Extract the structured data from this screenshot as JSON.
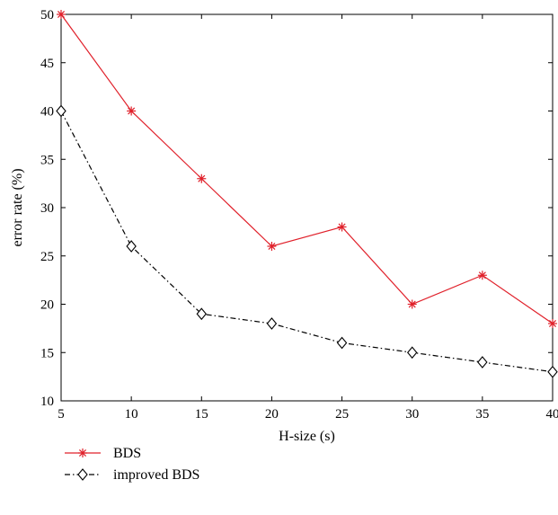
{
  "chart_data": {
    "type": "line",
    "title": "",
    "xlabel": "H-size (s)",
    "ylabel": "error rate (%)",
    "xlim": [
      5,
      40
    ],
    "ylim": [
      10,
      50
    ],
    "x": [
      5,
      10,
      15,
      20,
      25,
      30,
      35,
      40
    ],
    "x_ticks": [
      "5",
      "10",
      "15",
      "20",
      "25",
      "30",
      "35",
      "40"
    ],
    "y_ticks": [
      "10",
      "15",
      "20",
      "25",
      "30",
      "35",
      "40",
      "45",
      "50"
    ],
    "grid": false,
    "legend_position": "below-left",
    "series": [
      {
        "name": "BDS",
        "values": [
          50,
          40,
          33,
          26,
          28,
          20,
          23,
          18
        ],
        "color": "#e0202a",
        "marker": "asterisk",
        "line_style": "solid"
      },
      {
        "name": "improved BDS",
        "values": [
          40,
          26,
          19,
          18,
          16,
          15,
          14,
          13
        ],
        "color": "#000000",
        "marker": "diamond",
        "line_style": "dash-dot"
      }
    ]
  }
}
